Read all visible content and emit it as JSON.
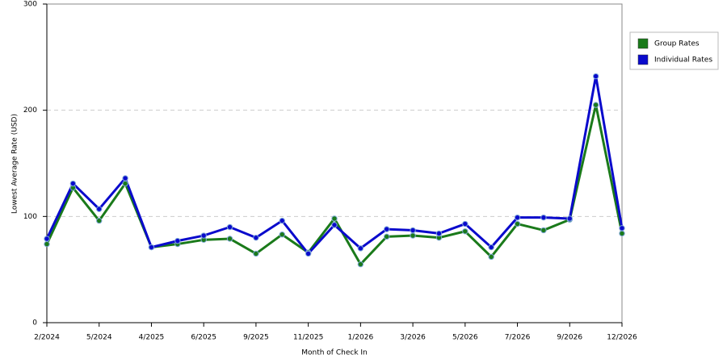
{
  "chart_data": {
    "type": "line",
    "x_label": "Month of Check In",
    "y_label": "Lowest Average Rate (USD)",
    "categories": [
      "2/2024",
      null,
      "5/2024",
      null,
      "4/2025",
      null,
      "6/2025",
      null,
      "9/2025",
      null,
      "11/2025",
      null,
      "1/2026",
      null,
      "3/2026",
      null,
      "5/2026",
      null,
      "7/2026",
      null,
      "9/2026",
      null,
      "12/2026"
    ],
    "series": [
      {
        "name": "Group Rates",
        "color": "#1a7a1a",
        "values": [
          74,
          127,
          96,
          131,
          71,
          74,
          78,
          79,
          65,
          83,
          66,
          98,
          55,
          81,
          82,
          80,
          86,
          62,
          93,
          87,
          97,
          205,
          84
        ]
      },
      {
        "name": "Individual Rates",
        "color": "#0a0acc",
        "values": [
          79,
          131,
          107,
          136,
          71,
          77,
          82,
          90,
          80,
          96,
          65,
          92,
          70,
          88,
          87,
          84,
          93,
          71,
          99,
          99,
          98,
          232,
          89
        ]
      }
    ],
    "ylim": [
      0,
      300
    ],
    "yticks": [
      0,
      100,
      200,
      300
    ],
    "grid": true,
    "legend": "right"
  }
}
